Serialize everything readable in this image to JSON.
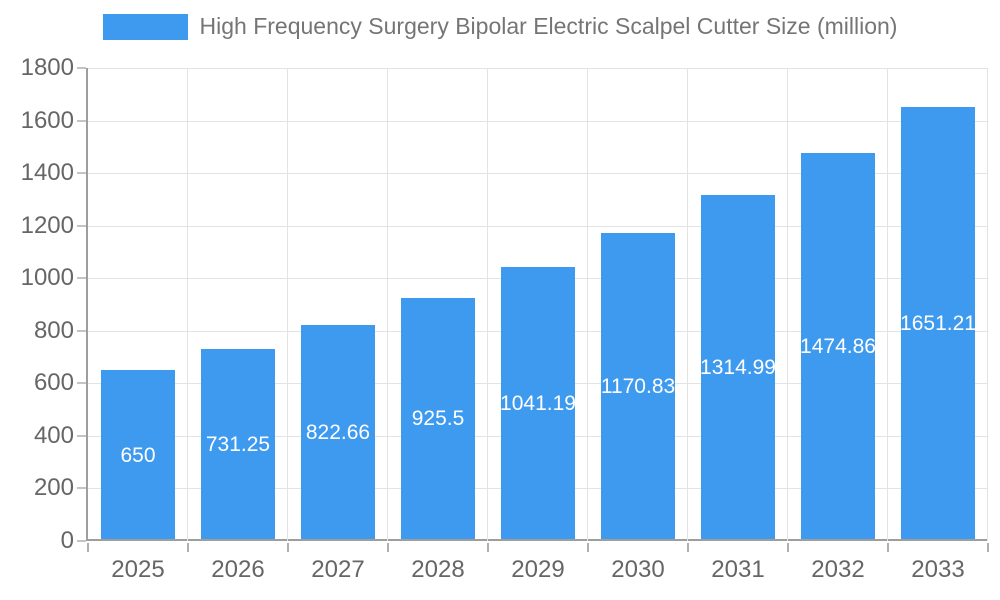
{
  "chart_data": {
    "type": "bar",
    "legend_label": "High Frequency Surgery Bipolar Electric Scalpel Cutter Size (million)",
    "legend_position": "top",
    "categories": [
      "2025",
      "2026",
      "2027",
      "2028",
      "2029",
      "2030",
      "2031",
      "2032",
      "2033"
    ],
    "values": [
      650,
      731.25,
      822.66,
      925.5,
      1041.19,
      1170.83,
      1314.99,
      1474.86,
      1651.21
    ],
    "value_labels": [
      "650",
      "731.25",
      "822.66",
      "925.5",
      "1041.19",
      "1170.83",
      "1314.99",
      "1474.86",
      "1651.21"
    ],
    "xlabel": "",
    "ylabel": "",
    "ylim": [
      0,
      1800
    ],
    "yticks": [
      0,
      200,
      400,
      600,
      800,
      1000,
      1200,
      1400,
      1600,
      1800
    ],
    "grid": true,
    "bar_color": "#3e9aef",
    "value_label_color": "#ffffff",
    "axis_text_color": "#666666",
    "legend_text_color": "#757575"
  }
}
